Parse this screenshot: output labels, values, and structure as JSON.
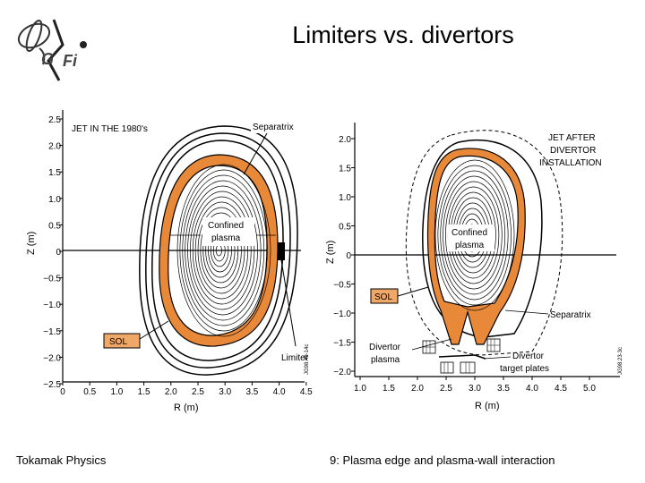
{
  "title": "Limiters vs. divertors",
  "footer": {
    "left": "Tokamak Physics",
    "right": "9: Plasma edge and plasma-wall interaction"
  },
  "left_panel": {
    "heading": "JET IN THE 1980's",
    "labels": {
      "separatrix": "Separatrix",
      "confined": [
        "Confined",
        "plasma"
      ],
      "sol": "SOL",
      "limiter": "Limiter",
      "code": "JG98.49-14c"
    },
    "yaxis_label": "Z (m)",
    "xaxis_label": "R (m)",
    "yticks": [
      "2.5",
      "2.0",
      "1.5",
      "1.0",
      "0.5",
      "0",
      "−0.5",
      "−1.0",
      "−1.5",
      "−2.0",
      "−2.5"
    ],
    "xticks": [
      "0",
      "0.5",
      "1.0",
      "1.5",
      "2.0",
      "2.5",
      "3.0",
      "3.5",
      "4.0",
      "4.5"
    ]
  },
  "right_panel": {
    "heading": [
      "JET AFTER",
      "DIVERTOR",
      "INSTALLATION"
    ],
    "labels": {
      "confined": [
        "Confined",
        "plasma"
      ],
      "sol": "SOL",
      "separatrix": "Separatrix",
      "divertor_plasma": [
        "Divertor",
        "plasma"
      ],
      "target_plates": [
        "Divertor",
        "target plates"
      ],
      "code": "JG98.23-3c"
    },
    "yaxis_label": "Z (m)",
    "xaxis_label": "R (m)",
    "yticks": [
      "2.0",
      "1.5",
      "1.0",
      "0.5",
      "0",
      "−0.5",
      "−1.0",
      "−1.5",
      "−2.0"
    ],
    "xticks": [
      "1.0",
      "1.5",
      "2.0",
      "2.5",
      "3.0",
      "3.5",
      "4.0",
      "4.5",
      "5.0"
    ]
  },
  "colors": {
    "sol": "#e8893a",
    "box_fill": "#f0a868",
    "line": "#000000"
  }
}
